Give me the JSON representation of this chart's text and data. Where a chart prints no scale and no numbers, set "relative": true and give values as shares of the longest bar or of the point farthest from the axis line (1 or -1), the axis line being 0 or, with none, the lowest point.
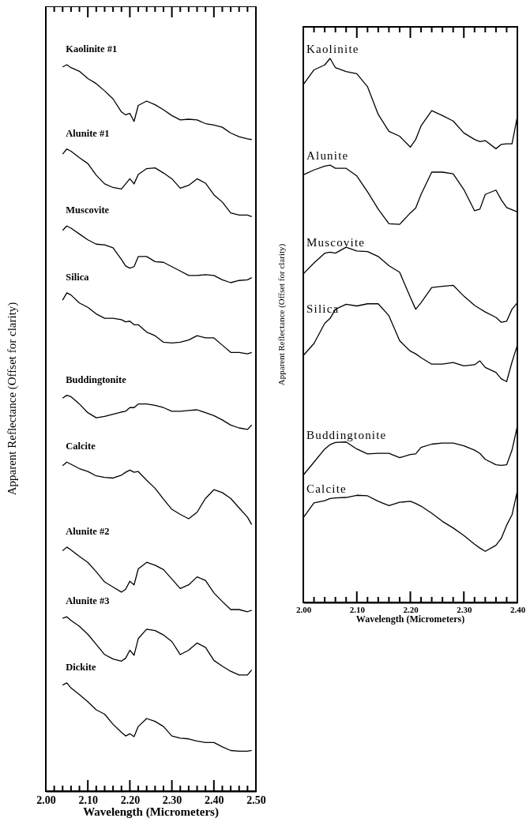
{
  "chart_data": [
    {
      "type": "line",
      "relative": true,
      "xlabel": "Wavelength (Micrometers)",
      "ylabel": "Apparent Reflectance (Offset for clarity)",
      "xlim": [
        2.0,
        2.5
      ],
      "xticks": [
        {
          "value": 2.0,
          "label": "2.00"
        },
        {
          "value": 2.02,
          "label": null
        },
        {
          "value": 2.04,
          "label": null
        },
        {
          "value": 2.06,
          "label": null
        },
        {
          "value": 2.08,
          "label": null
        },
        {
          "value": 2.1,
          "label": "2.10"
        },
        {
          "value": 2.12,
          "label": null
        },
        {
          "value": 2.14,
          "label": null
        },
        {
          "value": 2.16,
          "label": null
        },
        {
          "value": 2.18,
          "label": null
        },
        {
          "value": 2.2,
          "label": "2.20"
        },
        {
          "value": 2.22,
          "label": null
        },
        {
          "value": 2.24,
          "label": null
        },
        {
          "value": 2.26,
          "label": null
        },
        {
          "value": 2.28,
          "label": null
        },
        {
          "value": 2.3,
          "label": "2.30"
        },
        {
          "value": 2.32,
          "label": null
        },
        {
          "value": 2.34,
          "label": null
        },
        {
          "value": 2.36,
          "label": null
        },
        {
          "value": 2.38,
          "label": null
        },
        {
          "value": 2.4,
          "label": "2.40"
        },
        {
          "value": 2.42,
          "label": null
        },
        {
          "value": 2.44,
          "label": null
        },
        {
          "value": 2.46,
          "label": null
        },
        {
          "value": 2.48,
          "label": null
        },
        {
          "value": 2.5,
          "label": "2.50"
        }
      ],
      "x": [
        2.04,
        2.05,
        2.06,
        2.08,
        2.1,
        2.12,
        2.14,
        2.16,
        2.18,
        2.19,
        2.2,
        2.21,
        2.22,
        2.24,
        2.26,
        2.28,
        2.3,
        2.32,
        2.34,
        2.36,
        2.38,
        2.4,
        2.42,
        2.44,
        2.46,
        2.48,
        2.49
      ],
      "series": [
        {
          "name": "Kaolinite #1",
          "color": "#000000",
          "values": [
            0.997,
            1.0,
            0.996,
            0.991,
            0.981,
            0.974,
            0.964,
            0.953,
            0.935,
            0.931,
            0.933,
            0.922,
            0.944,
            0.95,
            0.945,
            0.938,
            0.93,
            0.924,
            0.925,
            0.924,
            0.919,
            0.917,
            0.914,
            0.906,
            0.901,
            0.898,
            0.897
          ]
        },
        {
          "name": "Alunite #1",
          "color": "#000000",
          "values": [
            0.877,
            0.884,
            0.881,
            0.872,
            0.864,
            0.848,
            0.836,
            0.831,
            0.829,
            0.836,
            0.843,
            0.836,
            0.849,
            0.857,
            0.858,
            0.851,
            0.843,
            0.83,
            0.834,
            0.843,
            0.837,
            0.821,
            0.811,
            0.796,
            0.793,
            0.793,
            0.791
          ]
        },
        {
          "name": "Muscovite",
          "color": "#000000",
          "values": [
            0.772,
            0.778,
            0.775,
            0.767,
            0.759,
            0.753,
            0.752,
            0.748,
            0.732,
            0.723,
            0.72,
            0.722,
            0.736,
            0.736,
            0.729,
            0.728,
            0.722,
            0.716,
            0.71,
            0.71,
            0.711,
            0.71,
            0.704,
            0.7,
            0.703,
            0.704,
            0.707
          ]
        },
        {
          "name": "Silica",
          "color": "#000000",
          "values": [
            0.676,
            0.686,
            0.683,
            0.672,
            0.666,
            0.657,
            0.651,
            0.651,
            0.649,
            0.646,
            0.647,
            0.642,
            0.642,
            0.632,
            0.627,
            0.618,
            0.617,
            0.618,
            0.621,
            0.627,
            0.624,
            0.624,
            0.614,
            0.604,
            0.604,
            0.602,
            0.604
          ]
        },
        {
          "name": "Buddingtonite",
          "color": "#000000",
          "values": [
            0.541,
            0.545,
            0.543,
            0.533,
            0.521,
            0.514,
            0.516,
            0.519,
            0.522,
            0.523,
            0.528,
            0.528,
            0.533,
            0.533,
            0.531,
            0.528,
            0.523,
            0.523,
            0.524,
            0.525,
            0.521,
            0.517,
            0.511,
            0.504,
            0.5,
            0.498,
            0.504
          ]
        },
        {
          "name": "Calcite",
          "color": "#000000",
          "values": [
            0.448,
            0.453,
            0.45,
            0.444,
            0.44,
            0.434,
            0.432,
            0.431,
            0.435,
            0.439,
            0.442,
            0.439,
            0.44,
            0.428,
            0.417,
            0.402,
            0.388,
            0.381,
            0.375,
            0.384,
            0.403,
            0.415,
            0.411,
            0.403,
            0.39,
            0.377,
            0.367
          ]
        },
        {
          "name": "Alunite #2",
          "color": "#000000",
          "values": [
            0.331,
            0.336,
            0.332,
            0.323,
            0.315,
            0.302,
            0.288,
            0.281,
            0.274,
            0.278,
            0.289,
            0.284,
            0.306,
            0.315,
            0.311,
            0.305,
            0.292,
            0.279,
            0.284,
            0.295,
            0.29,
            0.273,
            0.261,
            0.25,
            0.25,
            0.247,
            0.249
          ]
        },
        {
          "name": "Alunite #3",
          "color": "#000000",
          "values": [
            0.238,
            0.24,
            0.235,
            0.227,
            0.216,
            0.202,
            0.188,
            0.182,
            0.179,
            0.183,
            0.194,
            0.187,
            0.21,
            0.223,
            0.221,
            0.215,
            0.206,
            0.188,
            0.194,
            0.204,
            0.198,
            0.18,
            0.172,
            0.165,
            0.16,
            0.16,
            0.167
          ]
        },
        {
          "name": "Dickite",
          "color": "#000000",
          "values": [
            0.146,
            0.149,
            0.142,
            0.133,
            0.123,
            0.112,
            0.106,
            0.092,
            0.081,
            0.076,
            0.079,
            0.075,
            0.089,
            0.1,
            0.096,
            0.089,
            0.076,
            0.073,
            0.072,
            0.069,
            0.067,
            0.067,
            0.061,
            0.056,
            0.055,
            0.055,
            0.056
          ]
        }
      ]
    },
    {
      "type": "line",
      "relative": true,
      "xlabel": "Wavelength (Micrometers)",
      "ylabel": "Apparent Reflectance (Offset for clarity)",
      "xlim": [
        2.0,
        2.4
      ],
      "xticks": [
        {
          "value": 2.0,
          "label": "2.00"
        },
        {
          "value": 2.02,
          "label": null
        },
        {
          "value": 2.04,
          "label": null
        },
        {
          "value": 2.06,
          "label": null
        },
        {
          "value": 2.08,
          "label": null
        },
        {
          "value": 2.1,
          "label": "2.10"
        },
        {
          "value": 2.12,
          "label": null
        },
        {
          "value": 2.14,
          "label": null
        },
        {
          "value": 2.16,
          "label": null
        },
        {
          "value": 2.18,
          "label": null
        },
        {
          "value": 2.2,
          "label": "2.20"
        },
        {
          "value": 2.22,
          "label": null
        },
        {
          "value": 2.24,
          "label": null
        },
        {
          "value": 2.26,
          "label": null
        },
        {
          "value": 2.28,
          "label": null
        },
        {
          "value": 2.3,
          "label": "2.30"
        },
        {
          "value": 2.32,
          "label": null
        },
        {
          "value": 2.34,
          "label": null
        },
        {
          "value": 2.36,
          "label": null
        },
        {
          "value": 2.38,
          "label": null
        },
        {
          "value": 2.4,
          "label": "2.40"
        }
      ],
      "x": [
        2.0,
        2.02,
        2.04,
        2.05,
        2.06,
        2.08,
        2.1,
        2.12,
        2.14,
        2.16,
        2.18,
        2.2,
        2.21,
        2.22,
        2.24,
        2.26,
        2.28,
        2.3,
        2.32,
        2.33,
        2.34,
        2.36,
        2.37,
        2.38,
        2.39,
        2.4
      ],
      "series": [
        {
          "name": "Kaolinite",
          "color": "#000000",
          "values": [
            0.952,
            0.979,
            0.988,
            1.0,
            0.983,
            0.976,
            0.972,
            0.948,
            0.897,
            0.866,
            0.857,
            0.837,
            0.851,
            0.876,
            0.904,
            0.895,
            0.885,
            0.863,
            0.851,
            0.847,
            0.849,
            0.834,
            0.842,
            0.843,
            0.843,
            0.893
          ]
        },
        {
          "name": "Alunite",
          "color": "#000000",
          "values": [
            0.786,
            0.795,
            0.802,
            0.804,
            0.798,
            0.798,
            0.784,
            0.755,
            0.723,
            0.696,
            0.695,
            0.716,
            0.725,
            0.75,
            0.791,
            0.791,
            0.788,
            0.759,
            0.72,
            0.723,
            0.75,
            0.758,
            0.74,
            0.726,
            0.722,
            0.718
          ]
        },
        {
          "name": "Muscovite",
          "color": "#000000",
          "values": [
            0.604,
            0.624,
            0.642,
            0.644,
            0.642,
            0.653,
            0.646,
            0.645,
            0.636,
            0.619,
            0.607,
            0.561,
            0.539,
            0.551,
            0.579,
            0.581,
            0.583,
            0.563,
            0.546,
            0.54,
            0.534,
            0.524,
            0.515,
            0.517,
            0.539,
            0.551
          ]
        },
        {
          "name": "Silica",
          "color": "#000000",
          "values": [
            0.454,
            0.476,
            0.513,
            0.522,
            0.539,
            0.548,
            0.545,
            0.549,
            0.549,
            0.527,
            0.481,
            0.462,
            0.457,
            0.45,
            0.438,
            0.438,
            0.441,
            0.435,
            0.437,
            0.444,
            0.432,
            0.423,
            0.411,
            0.406,
            0.442,
            0.473
          ]
        },
        {
          "name": "Buddingtonite",
          "color": "#000000",
          "values": [
            0.234,
            0.258,
            0.282,
            0.29,
            0.294,
            0.295,
            0.282,
            0.273,
            0.274,
            0.274,
            0.266,
            0.272,
            0.273,
            0.285,
            0.291,
            0.293,
            0.293,
            0.288,
            0.28,
            0.274,
            0.263,
            0.253,
            0.252,
            0.253,
            0.28,
            0.324
          ]
        },
        {
          "name": "Calcite",
          "color": "#000000",
          "values": [
            0.156,
            0.183,
            0.187,
            0.191,
            0.192,
            0.193,
            0.197,
            0.196,
            0.186,
            0.178,
            0.184,
            0.186,
            0.182,
            0.177,
            0.164,
            0.149,
            0.137,
            0.123,
            0.107,
            0.1,
            0.094,
            0.105,
            0.118,
            0.142,
            0.161,
            0.205
          ]
        }
      ]
    }
  ]
}
